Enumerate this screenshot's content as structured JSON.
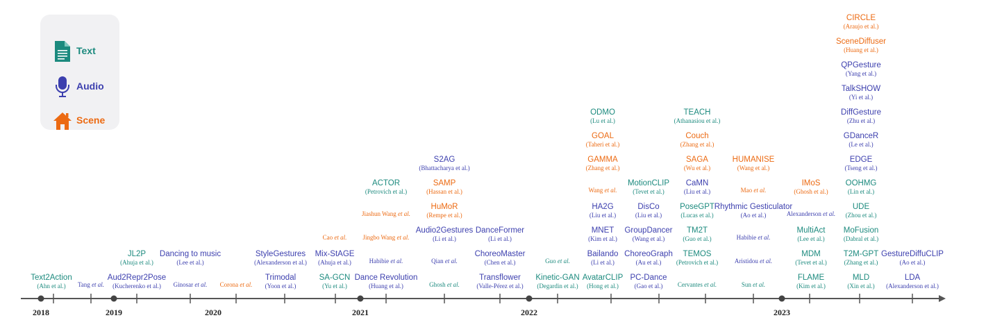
{
  "legend": {
    "items": [
      {
        "label": "Text",
        "icon": "document-icon",
        "color": "#1c8a7e"
      },
      {
        "label": "Audio",
        "icon": "microphone-icon",
        "color": "#3c3fae"
      },
      {
        "label": "Scene",
        "icon": "house-icon",
        "color": "#ec6a12"
      }
    ]
  },
  "timeline": {
    "years": [
      "2018",
      "2019",
      "2020",
      "2021",
      "2022",
      "2023"
    ],
    "entries": [
      {
        "name": "Text2Action",
        "author": "Ahn et al.",
        "category": "text"
      },
      {
        "name": "",
        "author": "Tang et al.",
        "category": "audio"
      },
      {
        "name": "Aud2Repr2Pose",
        "author": "Kucherenko et al.",
        "category": "audio"
      },
      {
        "name": "JL2P",
        "author": "Ahuja et al.",
        "category": "text"
      },
      {
        "name": "",
        "author": "Ginosar et al.",
        "category": "audio"
      },
      {
        "name": "Dancing to music",
        "author": "Lee et al.",
        "category": "audio"
      },
      {
        "name": "",
        "author": "Corona et al.",
        "category": "scene"
      },
      {
        "name": "Trimodal",
        "author": "Yoon et al.",
        "category": "audio"
      },
      {
        "name": "StyleGestures",
        "author": "Alexanderson et al.",
        "category": "audio"
      },
      {
        "name": "SA-GCN",
        "author": "Yu et al.",
        "category": "text"
      },
      {
        "name": "Mix-StAGE",
        "author": "Ahuja et al.",
        "category": "audio"
      },
      {
        "name": "",
        "author": "Cao et al.",
        "category": "scene"
      },
      {
        "name": "Dance Revolution",
        "author": "Huang et al.",
        "category": "audio"
      },
      {
        "name": "",
        "author": "Habibie et al.",
        "category": "audio"
      },
      {
        "name": "",
        "author": "Jingbo Wang et al.",
        "category": "scene"
      },
      {
        "name": "",
        "author": "Jiashun Wang et al.",
        "category": "scene"
      },
      {
        "name": "ACTOR",
        "author": "Petrovich et al.",
        "category": "text"
      },
      {
        "name": "",
        "author": "Ghosh et al.",
        "category": "text"
      },
      {
        "name": "",
        "author": "Qian et al.",
        "category": "audio"
      },
      {
        "name": "Audio2Gestures",
        "author": "Li et al.",
        "category": "audio"
      },
      {
        "name": "HuMoR",
        "author": "Rempe et al.",
        "category": "scene"
      },
      {
        "name": "SAMP",
        "author": "Hassan et al.",
        "category": "scene"
      },
      {
        "name": "S2AG",
        "author": "Bhattacharya et al.",
        "category": "audio"
      },
      {
        "name": "Transflower",
        "author": "Valle-Pérez et al.",
        "category": "audio"
      },
      {
        "name": "ChoreoMaster",
        "author": "Chen et al.",
        "category": "audio"
      },
      {
        "name": "DanceFormer",
        "author": "Li et al.",
        "category": "audio"
      },
      {
        "name": "Kinetic-GAN",
        "author": "Degardin et al.",
        "category": "text"
      },
      {
        "name": "",
        "author": "Guo et al.",
        "category": "text"
      },
      {
        "name": "AvatarCLIP",
        "author": "Hong et al.",
        "category": "text"
      },
      {
        "name": "Bailando",
        "author": "Li et al.",
        "category": "audio"
      },
      {
        "name": "MNET",
        "author": "Kim et al.",
        "category": "audio"
      },
      {
        "name": "HA2G",
        "author": "Liu et al.",
        "category": "audio"
      },
      {
        "name": "",
        "author": "Wang et al.",
        "category": "scene"
      },
      {
        "name": "GAMMA",
        "author": "Zhang et al.",
        "category": "scene"
      },
      {
        "name": "GOAL",
        "author": "Taheri et al.",
        "category": "scene"
      },
      {
        "name": "ODMO",
        "author": "Lu et al.",
        "category": "text"
      },
      {
        "name": "PC-Dance",
        "author": "Gao et al.",
        "category": "audio"
      },
      {
        "name": "ChoreoGraph",
        "author": "Au et al.",
        "category": "audio"
      },
      {
        "name": "GroupDancer",
        "author": "Wang et al.",
        "category": "audio"
      },
      {
        "name": "DisCo",
        "author": "Liu et al.",
        "category": "audio"
      },
      {
        "name": "MotionCLIP",
        "author": "Tevet et al.",
        "category": "text"
      },
      {
        "name": "",
        "author": "Cervantes et al.",
        "category": "text"
      },
      {
        "name": "TEMOS",
        "author": "Petrovich et al.",
        "category": "text"
      },
      {
        "name": "TM2T",
        "author": "Guo et al.",
        "category": "text"
      },
      {
        "name": "PoseGPT",
        "author": "Lucas et al.",
        "category": "text"
      },
      {
        "name": "CaMN",
        "author": "Liu et al.",
        "category": "audio"
      },
      {
        "name": "SAGA",
        "author": "Wu et al.",
        "category": "scene"
      },
      {
        "name": "Couch",
        "author": "Zhang et al.",
        "category": "scene"
      },
      {
        "name": "TEACH",
        "author": "Athanasiou et al.",
        "category": "text"
      },
      {
        "name": "",
        "author": "Sun et al.",
        "category": "text"
      },
      {
        "name": "",
        "author": "Aristidou et al.",
        "category": "audio"
      },
      {
        "name": "",
        "author": "Habibie et al.",
        "category": "audio"
      },
      {
        "name": "Rhythmic Gesticulator",
        "author": "Ao et al.",
        "category": "audio"
      },
      {
        "name": "",
        "author": "Mao et al.",
        "category": "scene"
      },
      {
        "name": "HUMANISE",
        "author": "Wang et al.",
        "category": "scene"
      },
      {
        "name": "FLAME",
        "author": "Kim et al.",
        "category": "text"
      },
      {
        "name": "MDM",
        "author": "Tevet et al.",
        "category": "text"
      },
      {
        "name": "MultiAct",
        "author": "Lee et al.",
        "category": "text"
      },
      {
        "name": "",
        "author": "Alexanderson et al.",
        "category": "audio"
      },
      {
        "name": "IMoS",
        "author": "Ghosh et al.",
        "category": "scene"
      },
      {
        "name": "MLD",
        "author": "Xin et al.",
        "category": "text"
      },
      {
        "name": "T2M-GPT",
        "author": "Zhang et al.",
        "category": "text"
      },
      {
        "name": "MoFusion",
        "author": "Dabral et al.",
        "category": "text"
      },
      {
        "name": "UDE",
        "author": "Zhou et al.",
        "category": "text"
      },
      {
        "name": "OOHMG",
        "author": "Lin et al.",
        "category": "text"
      },
      {
        "name": "EDGE",
        "author": "Tseng et al.",
        "category": "audio"
      },
      {
        "name": "GDanceR",
        "author": "Le et al.",
        "category": "audio"
      },
      {
        "name": "DiffGesture",
        "author": "Zhu et al.",
        "category": "audio"
      },
      {
        "name": "TalkSHOW",
        "author": "Yi et al.",
        "category": "audio"
      },
      {
        "name": "QPGesture",
        "author": "Yang et al.",
        "category": "audio"
      },
      {
        "name": "SceneDiffuser",
        "author": "Huang et al.",
        "category": "scene"
      },
      {
        "name": "CIRCLE",
        "author": "Araujo et al.",
        "category": "scene"
      },
      {
        "name": "LDA",
        "author": "Alexanderson et al.",
        "category": "audio"
      },
      {
        "name": "GestureDiffuCLIP",
        "author": "Ao et al.",
        "category": "audio"
      }
    ]
  }
}
